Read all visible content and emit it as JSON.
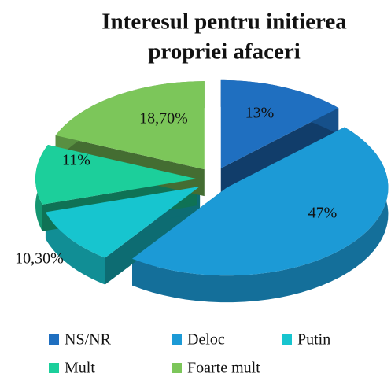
{
  "chart_data": {
    "type": "pie",
    "title": [
      "Interesul pentru initierea",
      "propriei afaceri"
    ],
    "categories": [
      "NS/NR",
      "Deloc",
      "Putin",
      "Mult",
      "Foarte mult"
    ],
    "values": [
      13,
      47,
      10.3,
      11,
      18.7
    ],
    "value_labels": [
      "13%",
      "47%",
      "10,30%",
      "11%",
      "18,70%"
    ],
    "colors": [
      "#1f6fc0",
      "#1c9ad6",
      "#17c5cf",
      "#1ccf9b",
      "#7cc65a"
    ],
    "legend": "bottom"
  }
}
